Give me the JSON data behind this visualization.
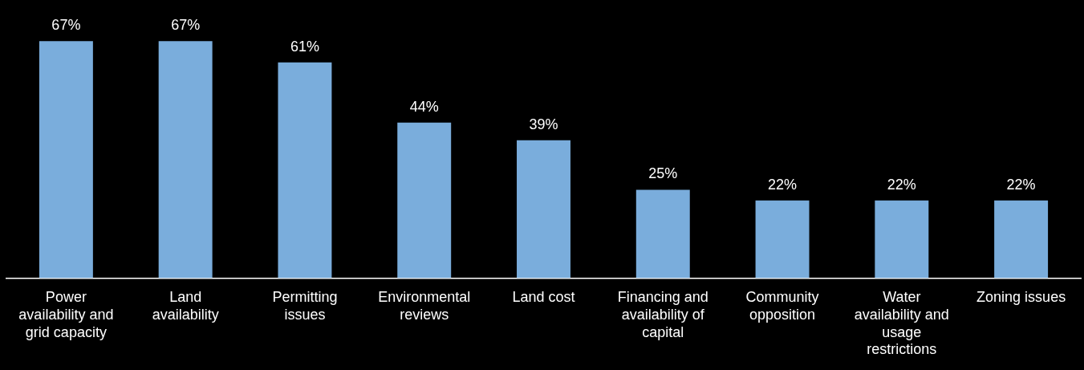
{
  "chart_data": {
    "type": "bar",
    "categories": [
      "Power availability and grid capacity",
      "Land availability",
      "Permitting issues",
      "Environmental reviews",
      "Land cost",
      "Financing and availability of capital",
      "Community opposition",
      "Water availability and usage restrictions",
      "Zoning issues"
    ],
    "values": [
      67,
      67,
      61,
      44,
      39,
      25,
      22,
      22,
      22
    ],
    "value_labels": [
      "67%",
      "67%",
      "61%",
      "44%",
      "39%",
      "25%",
      "22%",
      "22%",
      "22%"
    ],
    "color": "#7aaddc",
    "grid": false,
    "legend": false
  }
}
